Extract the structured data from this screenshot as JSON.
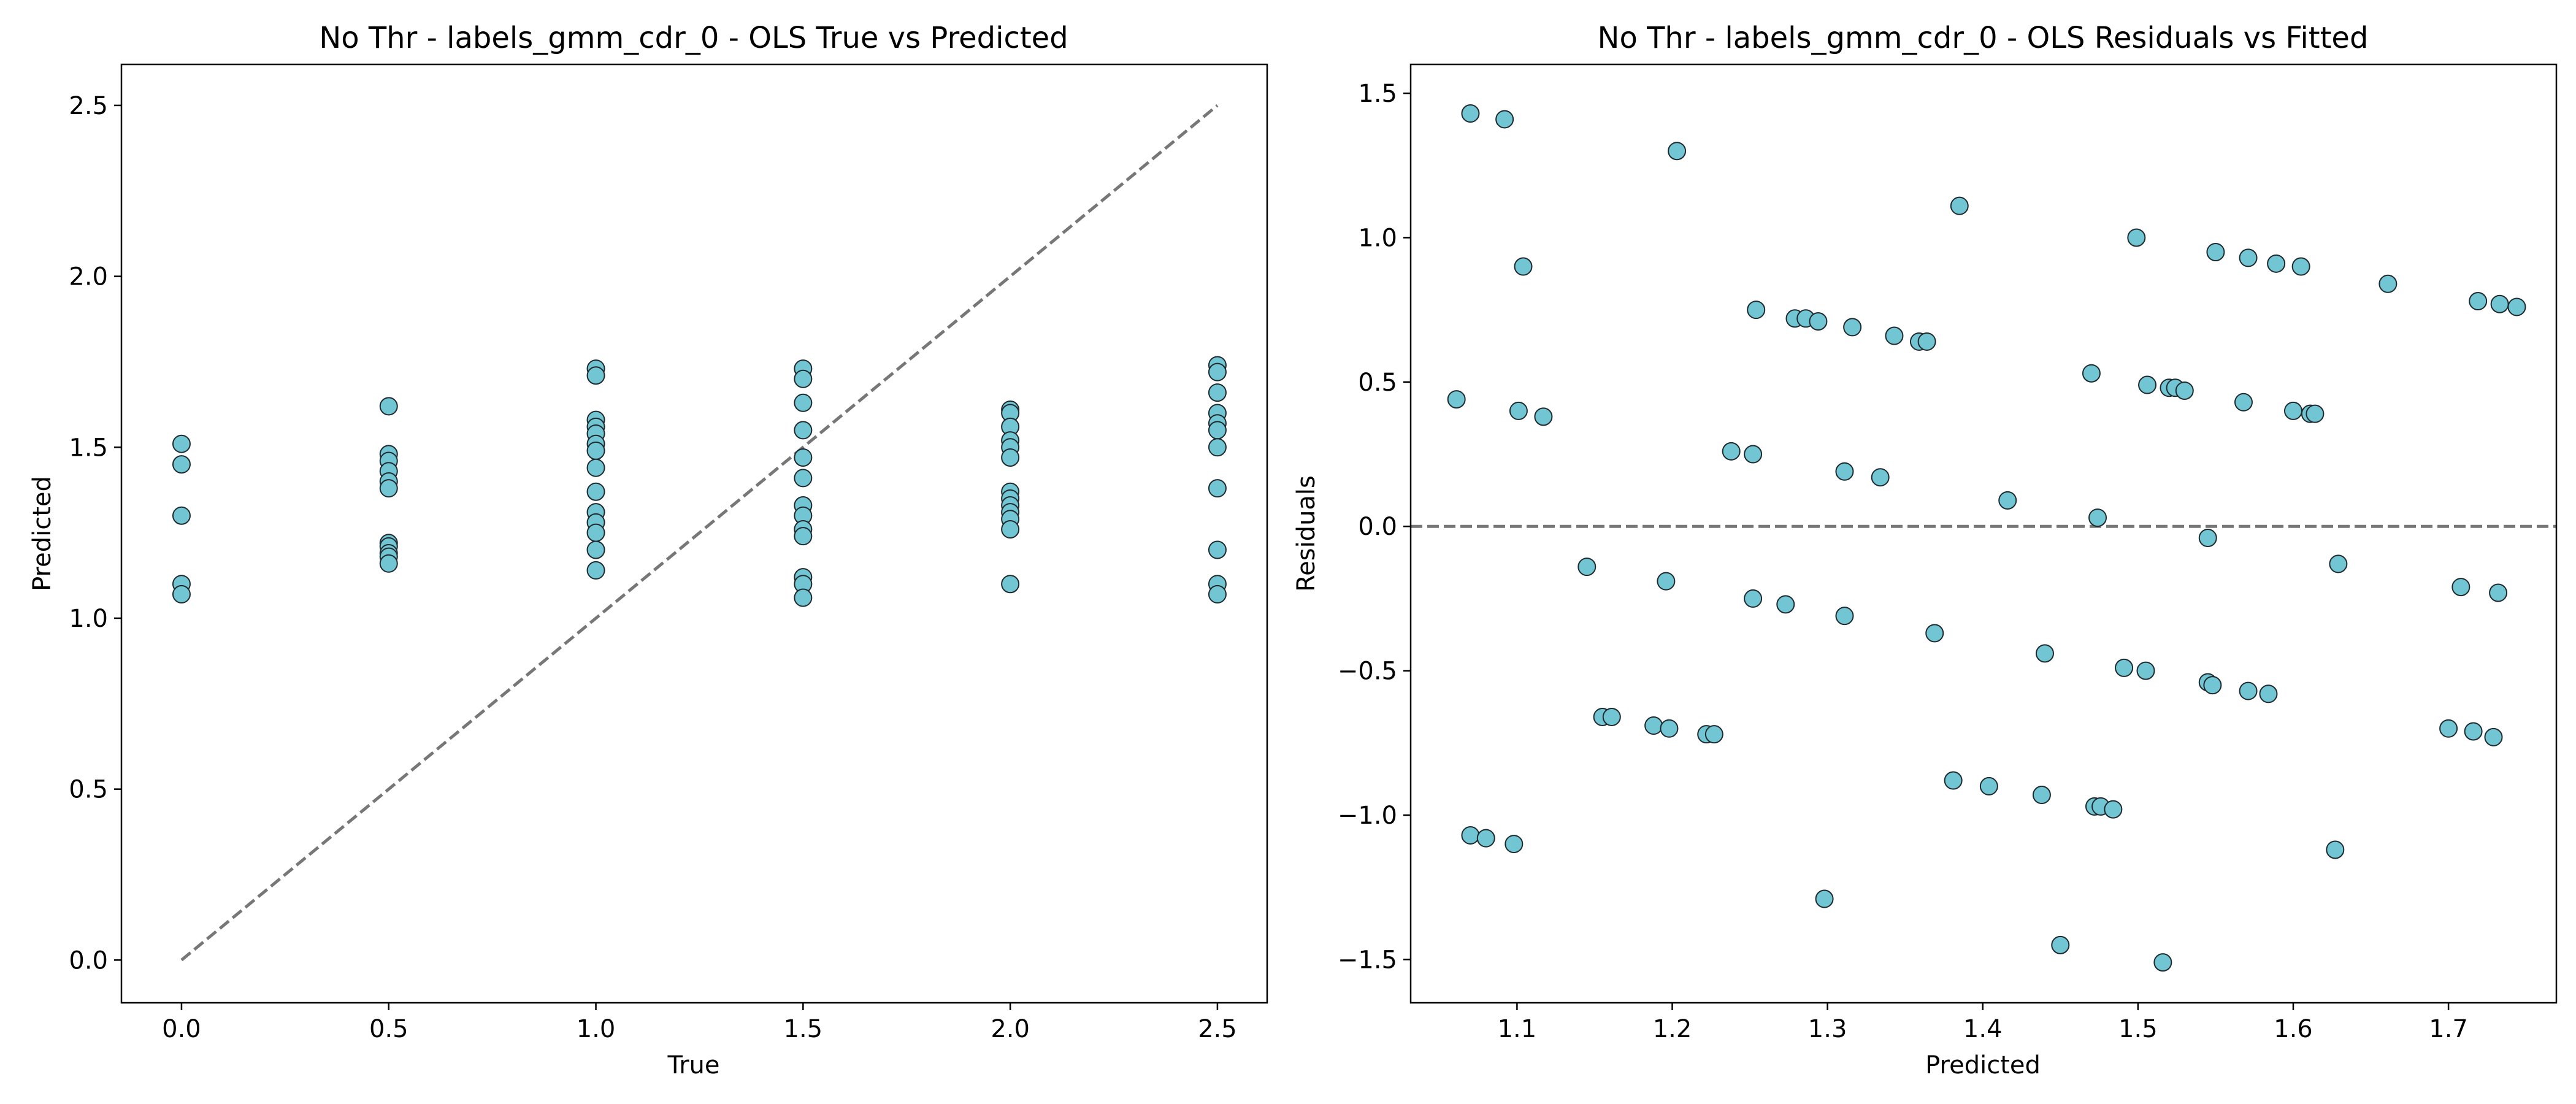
{
  "colors": {
    "marker_fill": "#72c6d3",
    "marker_edge": "#1f2a2e",
    "reference_line": "#777777",
    "axes": "#000000"
  },
  "chart_data": [
    {
      "type": "scatter",
      "title": "No Thr - labels_gmm_cdr_0 - OLS True vs Predicted",
      "xlabel": "True",
      "ylabel": "Predicted",
      "xlim": [
        -0.145,
        2.62
      ],
      "ylim": [
        -0.125,
        2.62
      ],
      "xticks": [
        0.0,
        0.5,
        1.0,
        1.5,
        2.0,
        2.5
      ],
      "yticks": [
        0.0,
        0.5,
        1.0,
        1.5,
        2.0,
        2.5
      ],
      "tick_labels_x": [
        "0.0",
        "0.5",
        "1.0",
        "1.5",
        "2.0",
        "2.5"
      ],
      "tick_labels_y": [
        "0.0",
        "0.5",
        "1.0",
        "1.5",
        "2.0",
        "2.5"
      ],
      "grid": false,
      "reference_line": {
        "style": "dashed",
        "from": [
          0,
          0
        ],
        "to": [
          2.5,
          2.5
        ]
      },
      "points": [
        {
          "x": 0.0,
          "y": 1.51
        },
        {
          "x": 0.0,
          "y": 1.45
        },
        {
          "x": 0.0,
          "y": 1.3
        },
        {
          "x": 0.0,
          "y": 1.1
        },
        {
          "x": 0.0,
          "y": 1.07
        },
        {
          "x": 0.5,
          "y": 1.62
        },
        {
          "x": 0.5,
          "y": 1.48
        },
        {
          "x": 0.5,
          "y": 1.46
        },
        {
          "x": 0.5,
          "y": 1.43
        },
        {
          "x": 0.5,
          "y": 1.4
        },
        {
          "x": 0.5,
          "y": 1.38
        },
        {
          "x": 0.5,
          "y": 1.22
        },
        {
          "x": 0.5,
          "y": 1.21
        },
        {
          "x": 0.5,
          "y": 1.19
        },
        {
          "x": 0.5,
          "y": 1.18
        },
        {
          "x": 0.5,
          "y": 1.16
        },
        {
          "x": 1.0,
          "y": 1.73
        },
        {
          "x": 1.0,
          "y": 1.71
        },
        {
          "x": 1.0,
          "y": 1.58
        },
        {
          "x": 1.0,
          "y": 1.56
        },
        {
          "x": 1.0,
          "y": 1.54
        },
        {
          "x": 1.0,
          "y": 1.51
        },
        {
          "x": 1.0,
          "y": 1.49
        },
        {
          "x": 1.0,
          "y": 1.44
        },
        {
          "x": 1.0,
          "y": 1.37
        },
        {
          "x": 1.0,
          "y": 1.31
        },
        {
          "x": 1.0,
          "y": 1.28
        },
        {
          "x": 1.0,
          "y": 1.25
        },
        {
          "x": 1.0,
          "y": 1.2
        },
        {
          "x": 1.0,
          "y": 1.14
        },
        {
          "x": 1.5,
          "y": 1.73
        },
        {
          "x": 1.5,
          "y": 1.7
        },
        {
          "x": 1.5,
          "y": 1.63
        },
        {
          "x": 1.5,
          "y": 1.55
        },
        {
          "x": 1.5,
          "y": 1.47
        },
        {
          "x": 1.5,
          "y": 1.41
        },
        {
          "x": 1.5,
          "y": 1.33
        },
        {
          "x": 1.5,
          "y": 1.3
        },
        {
          "x": 1.5,
          "y": 1.26
        },
        {
          "x": 1.5,
          "y": 1.24
        },
        {
          "x": 1.5,
          "y": 1.12
        },
        {
          "x": 1.5,
          "y": 1.1
        },
        {
          "x": 1.5,
          "y": 1.06
        },
        {
          "x": 2.0,
          "y": 1.61
        },
        {
          "x": 2.0,
          "y": 1.6
        },
        {
          "x": 2.0,
          "y": 1.56
        },
        {
          "x": 2.0,
          "y": 1.52
        },
        {
          "x": 2.0,
          "y": 1.5
        },
        {
          "x": 2.0,
          "y": 1.47
        },
        {
          "x": 2.0,
          "y": 1.37
        },
        {
          "x": 2.0,
          "y": 1.35
        },
        {
          "x": 2.0,
          "y": 1.33
        },
        {
          "x": 2.0,
          "y": 1.31
        },
        {
          "x": 2.0,
          "y": 1.29
        },
        {
          "x": 2.0,
          "y": 1.26
        },
        {
          "x": 2.0,
          "y": 1.1
        },
        {
          "x": 2.5,
          "y": 1.74
        },
        {
          "x": 2.5,
          "y": 1.72
        },
        {
          "x": 2.5,
          "y": 1.66
        },
        {
          "x": 2.5,
          "y": 1.6
        },
        {
          "x": 2.5,
          "y": 1.57
        },
        {
          "x": 2.5,
          "y": 1.55
        },
        {
          "x": 2.5,
          "y": 1.5
        },
        {
          "x": 2.5,
          "y": 1.38
        },
        {
          "x": 2.5,
          "y": 1.2
        },
        {
          "x": 2.5,
          "y": 1.1
        },
        {
          "x": 2.5,
          "y": 1.07
        }
      ]
    },
    {
      "type": "scatter",
      "title": "No Thr - labels_gmm_cdr_0 - OLS Residuals vs Fitted",
      "xlabel": "Predicted",
      "ylabel": "Residuals",
      "xlim": [
        1.0315,
        1.7695
      ],
      "ylim": [
        -1.65,
        1.6
      ],
      "xticks": [
        1.1,
        1.2,
        1.3,
        1.4,
        1.5,
        1.6,
        1.7
      ],
      "yticks": [
        -1.5,
        -1.0,
        -0.5,
        0.0,
        0.5,
        1.0,
        1.5
      ],
      "tick_labels_x": [
        "1.1",
        "1.2",
        "1.3",
        "1.4",
        "1.5",
        "1.6",
        "1.7"
      ],
      "tick_labels_y": [
        "−1.5",
        "−1.0",
        "−0.5",
        "0.0",
        "0.5",
        "1.0",
        "1.5"
      ],
      "grid": false,
      "reference_line": {
        "style": "dashed",
        "y": 0.0
      },
      "points": [
        {
          "x": 1.07,
          "y": 1.43
        },
        {
          "x": 1.092,
          "y": 1.41
        },
        {
          "x": 1.203,
          "y": 1.3
        },
        {
          "x": 1.385,
          "y": 1.11
        },
        {
          "x": 1.499,
          "y": 1.0
        },
        {
          "x": 1.104,
          "y": 0.9
        },
        {
          "x": 1.55,
          "y": 0.95
        },
        {
          "x": 1.571,
          "y": 0.93
        },
        {
          "x": 1.589,
          "y": 0.91
        },
        {
          "x": 1.605,
          "y": 0.9
        },
        {
          "x": 1.661,
          "y": 0.84
        },
        {
          "x": 1.719,
          "y": 0.78
        },
        {
          "x": 1.733,
          "y": 0.77
        },
        {
          "x": 1.744,
          "y": 0.76
        },
        {
          "x": 1.254,
          "y": 0.75
        },
        {
          "x": 1.279,
          "y": 0.72
        },
        {
          "x": 1.286,
          "y": 0.72
        },
        {
          "x": 1.294,
          "y": 0.71
        },
        {
          "x": 1.316,
          "y": 0.69
        },
        {
          "x": 1.343,
          "y": 0.66
        },
        {
          "x": 1.359,
          "y": 0.64
        },
        {
          "x": 1.364,
          "y": 0.64
        },
        {
          "x": 1.47,
          "y": 0.53
        },
        {
          "x": 1.506,
          "y": 0.49
        },
        {
          "x": 1.52,
          "y": 0.48
        },
        {
          "x": 1.524,
          "y": 0.48
        },
        {
          "x": 1.53,
          "y": 0.47
        },
        {
          "x": 1.061,
          "y": 0.44
        },
        {
          "x": 1.568,
          "y": 0.43
        },
        {
          "x": 1.101,
          "y": 0.4
        },
        {
          "x": 1.117,
          "y": 0.38
        },
        {
          "x": 1.6,
          "y": 0.4
        },
        {
          "x": 1.611,
          "y": 0.39
        },
        {
          "x": 1.614,
          "y": 0.39
        },
        {
          "x": 1.238,
          "y": 0.26
        },
        {
          "x": 1.252,
          "y": 0.25
        },
        {
          "x": 1.311,
          "y": 0.19
        },
        {
          "x": 1.334,
          "y": 0.17
        },
        {
          "x": 1.416,
          "y": 0.09
        },
        {
          "x": 1.474,
          "y": 0.03
        },
        {
          "x": 1.545,
          "y": -0.04
        },
        {
          "x": 1.145,
          "y": -0.14
        },
        {
          "x": 1.629,
          "y": -0.13
        },
        {
          "x": 1.196,
          "y": -0.19
        },
        {
          "x": 1.708,
          "y": -0.21
        },
        {
          "x": 1.732,
          "y": -0.23
        },
        {
          "x": 1.252,
          "y": -0.25
        },
        {
          "x": 1.273,
          "y": -0.27
        },
        {
          "x": 1.311,
          "y": -0.31
        },
        {
          "x": 1.369,
          "y": -0.37
        },
        {
          "x": 1.44,
          "y": -0.44
        },
        {
          "x": 1.491,
          "y": -0.49
        },
        {
          "x": 1.505,
          "y": -0.5
        },
        {
          "x": 1.545,
          "y": -0.54
        },
        {
          "x": 1.548,
          "y": -0.55
        },
        {
          "x": 1.571,
          "y": -0.57
        },
        {
          "x": 1.584,
          "y": -0.58
        },
        {
          "x": 1.155,
          "y": -0.66
        },
        {
          "x": 1.161,
          "y": -0.66
        },
        {
          "x": 1.188,
          "y": -0.69
        },
        {
          "x": 1.198,
          "y": -0.7
        },
        {
          "x": 1.222,
          "y": -0.72
        },
        {
          "x": 1.227,
          "y": -0.72
        },
        {
          "x": 1.7,
          "y": -0.7
        },
        {
          "x": 1.716,
          "y": -0.71
        },
        {
          "x": 1.729,
          "y": -0.73
        },
        {
          "x": 1.381,
          "y": -0.88
        },
        {
          "x": 1.404,
          "y": -0.9
        },
        {
          "x": 1.438,
          "y": -0.93
        },
        {
          "x": 1.472,
          "y": -0.97
        },
        {
          "x": 1.476,
          "y": -0.97
        },
        {
          "x": 1.484,
          "y": -0.98
        },
        {
          "x": 1.07,
          "y": -1.07
        },
        {
          "x": 1.08,
          "y": -1.08
        },
        {
          "x": 1.098,
          "y": -1.1
        },
        {
          "x": 1.627,
          "y": -1.12
        },
        {
          "x": 1.298,
          "y": -1.29
        },
        {
          "x": 1.45,
          "y": -1.45
        },
        {
          "x": 1.516,
          "y": -1.51
        }
      ]
    }
  ]
}
